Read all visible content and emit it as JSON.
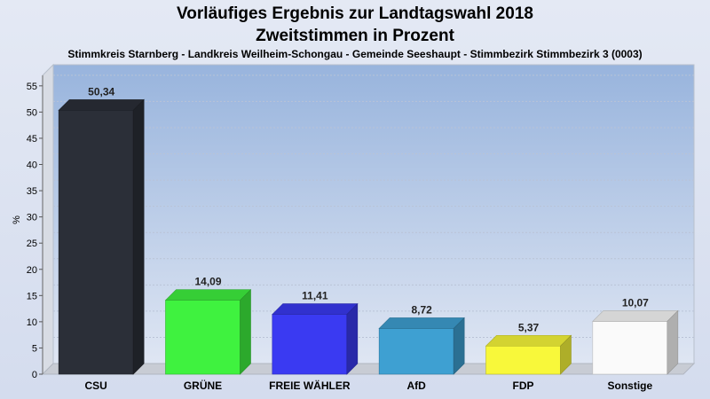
{
  "title": "Vorläufiges Ergebnis zur Landtagswahl 2018",
  "subtitle": "Zweitstimmen in Prozent",
  "caption": "Stimmkreis Starnberg - Landkreis Weilheim-Schongau - Gemeinde Seeshaupt - Stimmbezirk Stimmbezirk 3 (0003)",
  "chart_data": {
    "type": "bar",
    "title": "Vorläufiges Ergebnis zur Landtagswahl 2018",
    "subtitle": "Zweitstimmen in Prozent",
    "xlabel": "",
    "ylabel": "%",
    "ylim": [
      0,
      57
    ],
    "yticks": [
      0,
      5,
      10,
      15,
      20,
      25,
      30,
      35,
      40,
      45,
      50,
      55
    ],
    "grid": true,
    "categories": [
      "CSU",
      "GRÜNE",
      "FREIE WÄHLER",
      "AfD",
      "FDP",
      "Sonstige"
    ],
    "values": [
      50.34,
      14.09,
      11.41,
      8.72,
      5.37,
      10.07
    ],
    "labels": [
      "50,34",
      "14,09",
      "11,41",
      "8,72",
      "5,37",
      "10,07"
    ],
    "colors": [
      "#2b2f38",
      "#3ff23f",
      "#3a3af2",
      "#3ea0d2",
      "#f8f83a",
      "#fafafa"
    ]
  }
}
